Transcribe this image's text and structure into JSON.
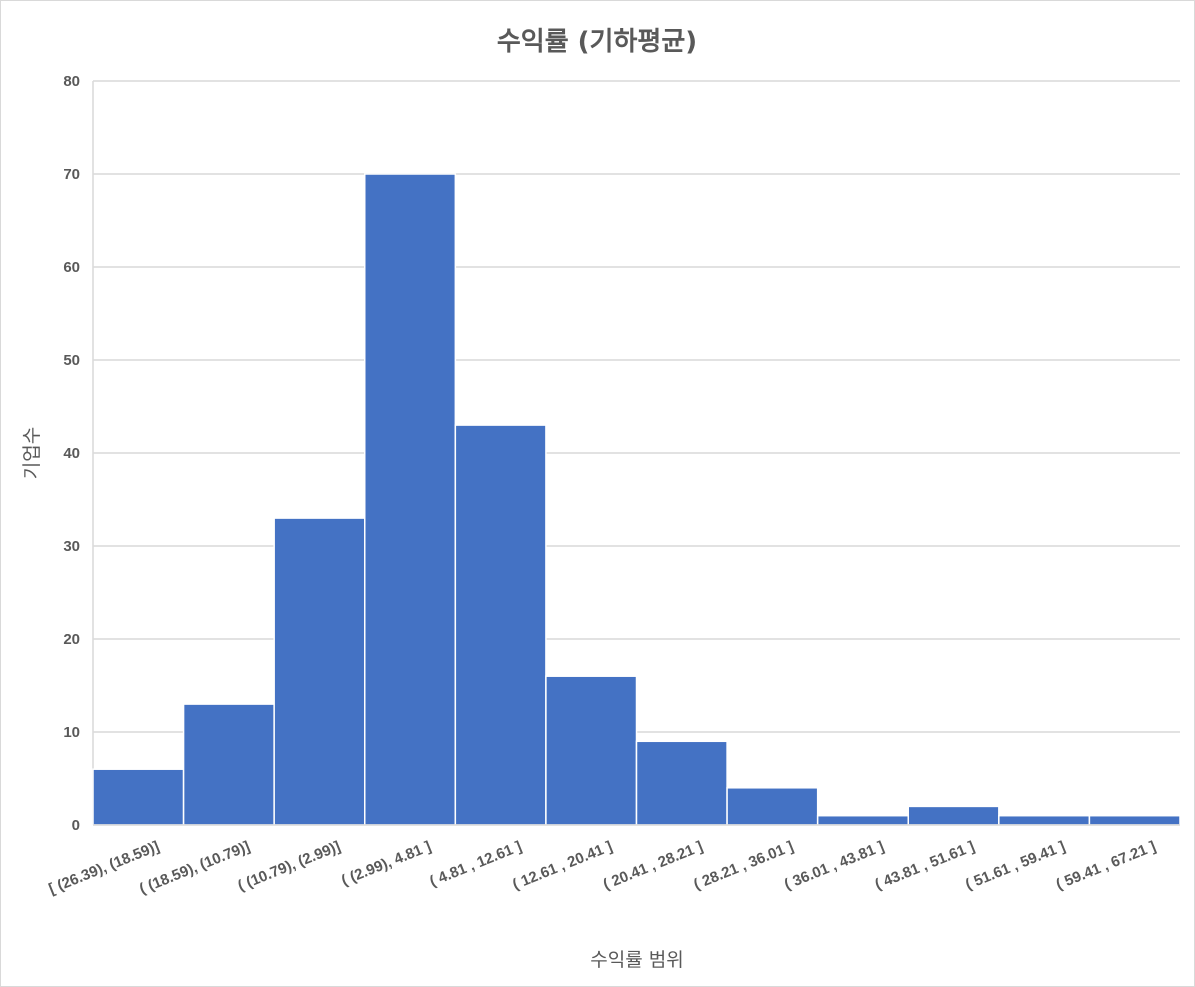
{
  "chart_data": {
    "type": "bar",
    "title": "수익률 (기하평균)",
    "xlabel": "수익률 범위",
    "ylabel": "기업수",
    "categories": [
      "[ (26.39), (18.59)]",
      "( (18.59), (10.79)]",
      "( (10.79), (2.99)]",
      "( (2.99), 4.81 ]",
      "( 4.81 , 12.61 ]",
      "( 12.61 , 20.41 ]",
      "( 20.41 , 28.21 ]",
      "( 28.21 , 36.01 ]",
      "( 36.01 , 43.81 ]",
      "( 43.81 , 51.61 ]",
      "( 51.61 , 59.41 ]",
      "( 59.41 , 67.21 ]"
    ],
    "values": [
      6,
      13,
      33,
      70,
      43,
      16,
      9,
      4,
      1,
      2,
      1,
      1
    ],
    "ylim": [
      0,
      80
    ],
    "yticks": [
      0,
      10,
      20,
      30,
      40,
      50,
      60,
      70,
      80
    ],
    "grid": true,
    "legend": "none",
    "colors": {
      "bar": "#4472c4",
      "grid": "#d9d9d9",
      "text": "#595959"
    }
  }
}
